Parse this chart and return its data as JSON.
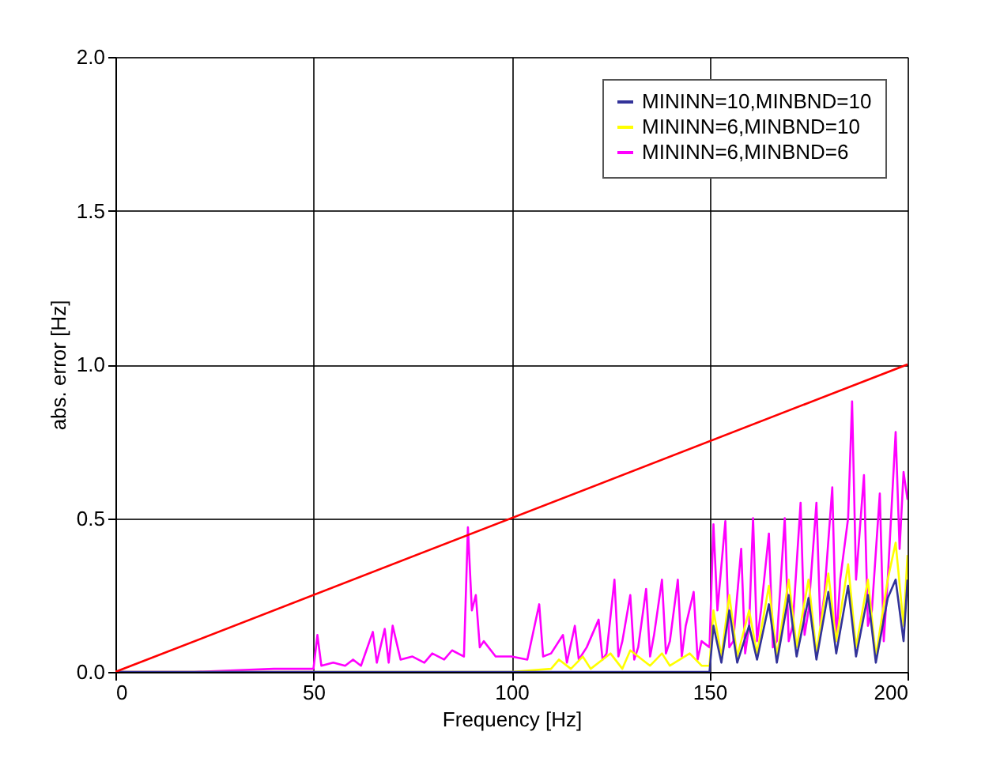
{
  "chart_data": {
    "type": "line",
    "xlabel": "Frequency [Hz]",
    "ylabel": "abs. error [Hz]",
    "xlim": [
      0,
      200
    ],
    "xticks": [
      0,
      50,
      100,
      150,
      200
    ],
    "ylim": [
      0,
      2.0
    ],
    "yticks": [
      {
        "value": 0,
        "label": "0.0"
      },
      {
        "value": 0.5,
        "label": "0.5"
      },
      {
        "value": 1.0,
        "label": "1.0"
      },
      {
        "value": 1.5,
        "label": "1.5"
      },
      {
        "value": 2.0,
        "label": "2.0"
      }
    ],
    "grid": true,
    "legend": "top right",
    "marker": "none",
    "line_style": "solid",
    "series": [
      {
        "name": "MININN=6,MINBND=6",
        "color": "#ff00ff",
        "x": [
          0,
          20,
          40,
          45,
          50,
          51,
          52,
          55,
          58,
          60,
          62,
          65,
          66,
          68,
          69,
          70,
          72,
          75,
          78,
          80,
          83,
          85,
          88,
          89,
          90,
          91,
          92,
          93,
          96,
          100,
          104,
          107,
          108,
          110,
          113,
          114,
          116,
          117,
          119,
          122,
          123,
          124,
          126,
          127,
          128,
          130,
          131,
          132,
          134,
          135,
          136,
          138,
          139,
          140,
          142,
          143,
          144,
          146,
          147,
          148,
          150,
          151,
          152,
          154,
          155,
          156,
          158,
          159,
          160,
          161,
          162,
          163,
          165,
          166,
          167,
          169,
          170,
          171,
          173,
          174,
          175,
          177,
          178,
          179,
          181,
          182,
          183,
          185,
          186,
          187,
          189,
          190,
          191,
          193,
          194,
          195,
          197,
          198,
          199,
          200
        ],
        "values": [
          0,
          0,
          0.01,
          0.01,
          0.01,
          0.12,
          0.02,
          0.03,
          0.02,
          0.04,
          0.02,
          0.13,
          0.03,
          0.14,
          0.03,
          0.15,
          0.04,
          0.05,
          0.03,
          0.06,
          0.04,
          0.07,
          0.05,
          0.47,
          0.2,
          0.25,
          0.08,
          0.1,
          0.05,
          0.05,
          0.04,
          0.22,
          0.05,
          0.06,
          0.12,
          0.03,
          0.15,
          0.04,
          0.08,
          0.17,
          0.04,
          0.06,
          0.3,
          0.05,
          0.1,
          0.25,
          0.04,
          0.08,
          0.27,
          0.05,
          0.12,
          0.3,
          0.06,
          0.1,
          0.3,
          0.05,
          0.15,
          0.26,
          0.04,
          0.1,
          0.08,
          0.48,
          0.2,
          0.49,
          0.08,
          0.1,
          0.4,
          0.06,
          0.15,
          0.5,
          0.1,
          0.2,
          0.45,
          0.08,
          0.1,
          0.5,
          0.1,
          0.15,
          0.55,
          0.12,
          0.2,
          0.55,
          0.15,
          0.25,
          0.6,
          0.1,
          0.3,
          0.5,
          0.88,
          0.3,
          0.64,
          0.15,
          0.2,
          0.58,
          0.1,
          0.3,
          0.78,
          0.4,
          0.65,
          0.56
        ]
      },
      {
        "name": "MININN=6,MINBND=10",
        "color": "#ffff00",
        "x": [
          0,
          50,
          100,
          110,
          112,
          115,
          118,
          120,
          125,
          128,
          130,
          135,
          138,
          140,
          145,
          148,
          150,
          151,
          153,
          155,
          157,
          160,
          162,
          165,
          167,
          170,
          172,
          175,
          177,
          180,
          182,
          185,
          187,
          190,
          192,
          195,
          197,
          199,
          200
        ],
        "values": [
          0,
          0,
          0,
          0.01,
          0.04,
          0.01,
          0.05,
          0.01,
          0.06,
          0.01,
          0.07,
          0.02,
          0.06,
          0.02,
          0.06,
          0.02,
          0.02,
          0.2,
          0.05,
          0.25,
          0.05,
          0.2,
          0.06,
          0.28,
          0.05,
          0.3,
          0.08,
          0.3,
          0.06,
          0.32,
          0.1,
          0.35,
          0.08,
          0.3,
          0.05,
          0.3,
          0.42,
          0.15,
          0.38
        ]
      },
      {
        "name": "MININN=10,MINBND=10",
        "color": "#333399",
        "x": [
          0,
          100,
          150,
          151,
          153,
          155,
          157,
          160,
          162,
          165,
          167,
          170,
          172,
          175,
          177,
          180,
          182,
          185,
          187,
          190,
          192,
          195,
          197,
          199,
          200
        ],
        "values": [
          0,
          0,
          0,
          0.15,
          0.03,
          0.2,
          0.03,
          0.15,
          0.04,
          0.22,
          0.03,
          0.25,
          0.05,
          0.24,
          0.04,
          0.26,
          0.06,
          0.28,
          0.05,
          0.25,
          0.03,
          0.24,
          0.3,
          0.1,
          0.3
        ]
      },
      {
        "color": "#ff0000",
        "x": [
          0,
          200
        ],
        "values": [
          0,
          1.0
        ]
      }
    ]
  }
}
